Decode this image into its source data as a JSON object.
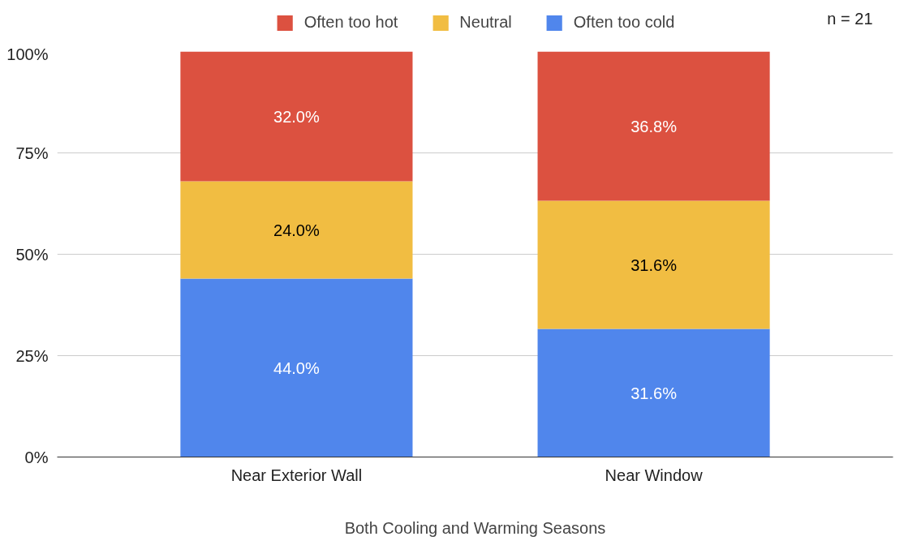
{
  "chart_data": {
    "type": "bar",
    "stacked": true,
    "xlabel": "Both Cooling and Warming Seasons",
    "categories": [
      "Near Exterior Wall",
      "Near Window"
    ],
    "series": [
      {
        "name": "Often too cold",
        "color": "#5086ec",
        "values": [
          44.0,
          31.6
        ],
        "value_labels": [
          "44.0%",
          "31.6%"
        ]
      },
      {
        "name": "Neutral",
        "color": "#f1bd42",
        "values": [
          24.0,
          31.6
        ],
        "value_labels": [
          "24.0%",
          "31.6%"
        ]
      },
      {
        "name": "Often too hot",
        "color": "#dc5140",
        "values": [
          32.0,
          36.8
        ],
        "value_labels": [
          "32.0%",
          "36.8%"
        ]
      }
    ],
    "ylim": [
      0,
      100
    ],
    "yticks": [
      {
        "value": 0,
        "label": "0%"
      },
      {
        "value": 25,
        "label": "25%"
      },
      {
        "value": 50,
        "label": "50%"
      },
      {
        "value": 75,
        "label": "75%"
      },
      {
        "value": 100,
        "label": "100%"
      }
    ],
    "grid": "y",
    "legend": "top",
    "annotations": [
      "n = 21"
    ]
  }
}
